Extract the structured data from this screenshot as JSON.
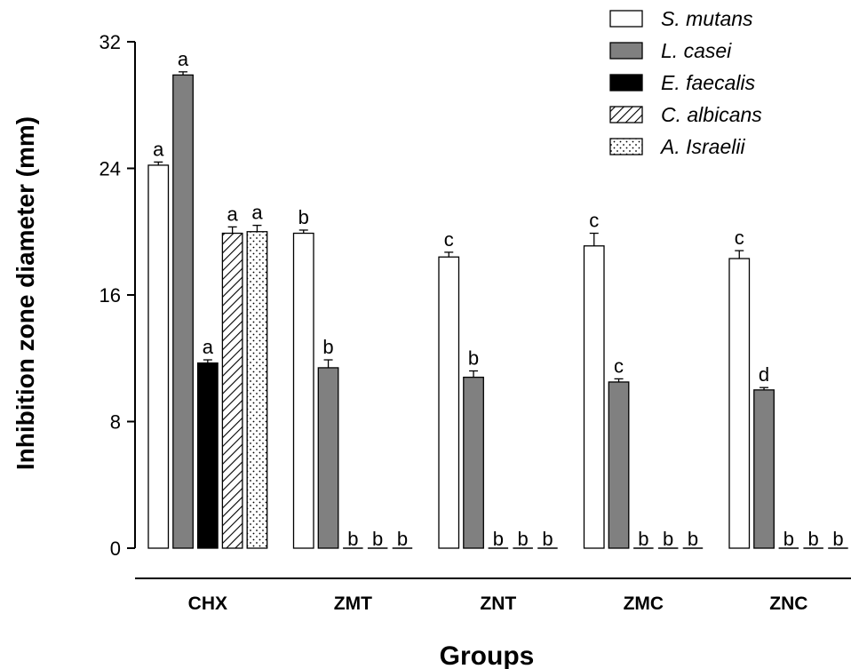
{
  "chart_data": {
    "type": "bar",
    "title": "",
    "xlabel": "Groups",
    "ylabel": "Inhibition zone diameter (mm)",
    "ylim": [
      0,
      32
    ],
    "yticks": [
      0,
      8,
      16,
      24,
      32
    ],
    "categories": [
      "CHX",
      "ZMT",
      "ZNT",
      "ZMC",
      "ZNC"
    ],
    "legend_position": "top-right",
    "series": [
      {
        "name": "S. mutans",
        "fill": "white",
        "values": [
          24.2,
          19.9,
          18.4,
          19.1,
          18.3
        ],
        "errors": [
          0.2,
          0.2,
          0.3,
          0.8,
          0.5
        ],
        "letters": [
          "a",
          "b",
          "c",
          "c",
          "c"
        ]
      },
      {
        "name": "L. casei",
        "fill": "gray",
        "values": [
          29.9,
          11.4,
          10.8,
          10.5,
          10.0
        ],
        "errors": [
          0.2,
          0.5,
          0.4,
          0.2,
          0.15
        ],
        "letters": [
          "a",
          "b",
          "b",
          "c",
          "d"
        ]
      },
      {
        "name": "E. faecalis",
        "fill": "black",
        "values": [
          11.7,
          0,
          0,
          0,
          0
        ],
        "errors": [
          0.2,
          0,
          0,
          0,
          0
        ],
        "letters": [
          "a",
          "b",
          "b",
          "b",
          "b"
        ]
      },
      {
        "name": "C. albicans",
        "fill": "hatch",
        "values": [
          19.9,
          0,
          0,
          0,
          0
        ],
        "errors": [
          0.4,
          0,
          0,
          0,
          0
        ],
        "letters": [
          "a",
          "b",
          "b",
          "b",
          "b"
        ]
      },
      {
        "name": "A. Israelii",
        "fill": "dots",
        "values": [
          20.0,
          0,
          0,
          0,
          0
        ],
        "errors": [
          0.4,
          0,
          0,
          0,
          0
        ],
        "letters": [
          "a",
          "b",
          "b",
          "b",
          "b"
        ]
      }
    ],
    "colors": {
      "gray": "#808080",
      "black": "#000000",
      "white": "#ffffff",
      "axis": "#000000"
    }
  }
}
